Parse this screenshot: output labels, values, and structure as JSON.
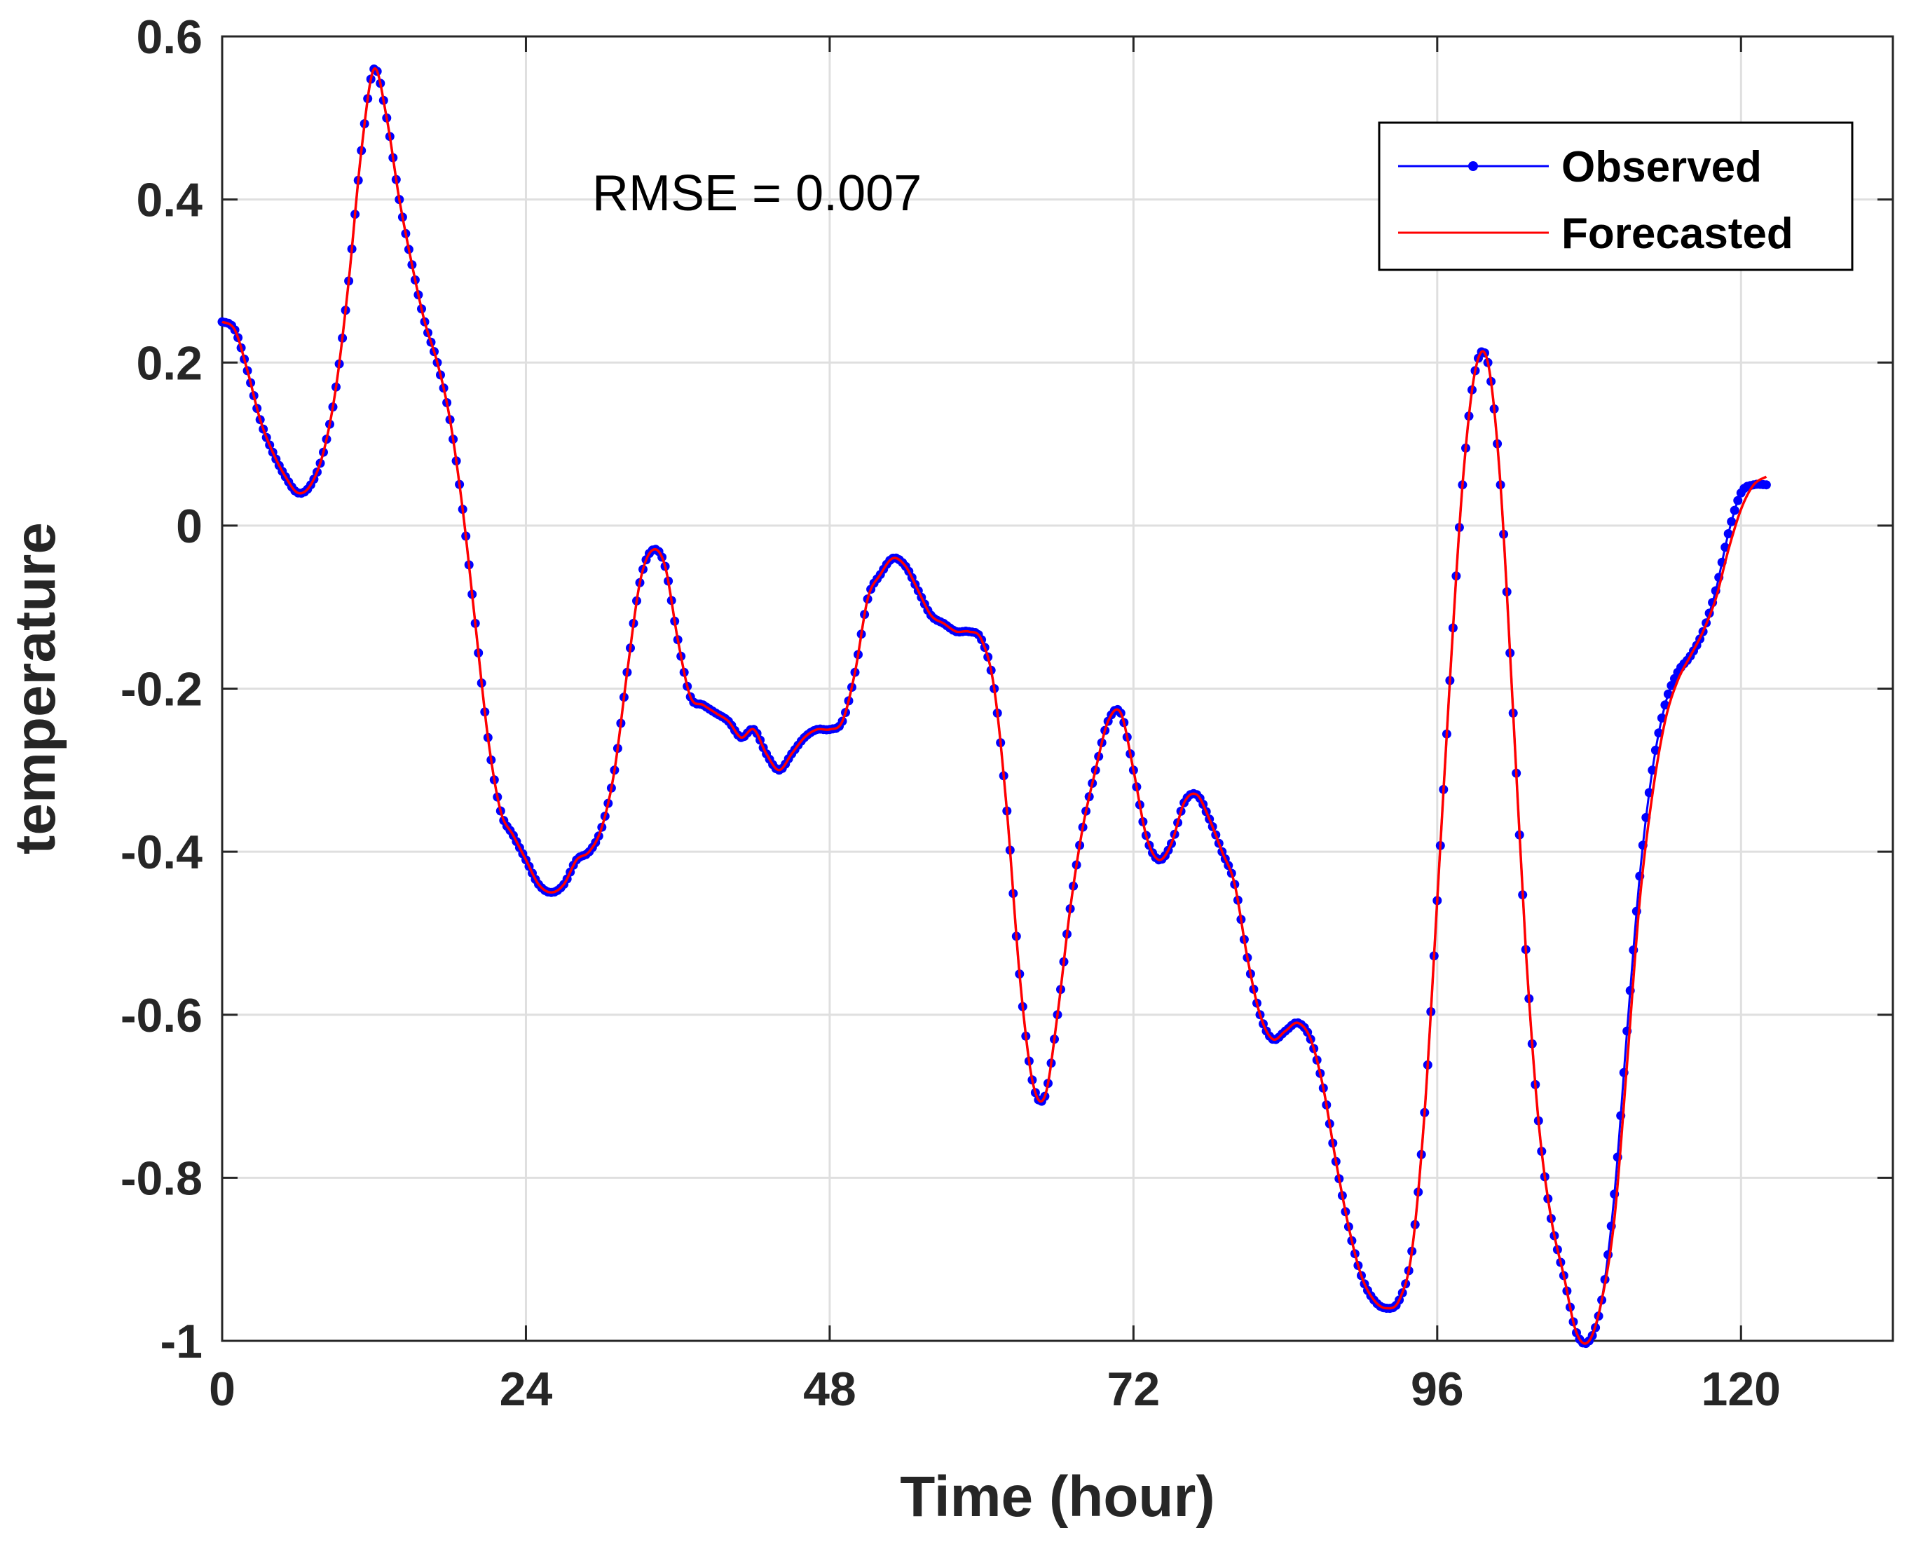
{
  "chart_data": {
    "type": "line",
    "xlabel": "Time (hour)",
    "ylabel": "temperature",
    "xlim": [
      0,
      132
    ],
    "ylim": [
      -1,
      0.6
    ],
    "xticks": [
      0,
      24,
      48,
      72,
      96,
      120
    ],
    "xtick_labels": [
      "0",
      "24",
      "48",
      "72",
      "96",
      "120"
    ],
    "yticks": [
      0.6,
      0.4,
      0.2,
      0,
      -0.2,
      -0.4,
      -0.6,
      -0.8,
      -1
    ],
    "ytick_labels": [
      "0.6",
      "0.4",
      "0.2",
      "0",
      "-0.2",
      "-0.4",
      "-0.6",
      "-0.8",
      "-1"
    ],
    "grid": true,
    "legend_position": "top-right",
    "annotation": "RMSE = 0.007",
    "series": [
      {
        "name": "Observed",
        "color": "#0000ff",
        "marker": "dot",
        "points": [
          [
            0,
            0.25
          ],
          [
            1,
            0.24
          ],
          [
            2,
            0.19
          ],
          [
            3,
            0.13
          ],
          [
            4,
            0.09
          ],
          [
            5,
            0.06
          ],
          [
            6,
            0.04
          ],
          [
            7,
            0.05
          ],
          [
            8,
            0.09
          ],
          [
            9,
            0.17
          ],
          [
            10,
            0.3
          ],
          [
            11,
            0.46
          ],
          [
            12,
            0.56
          ],
          [
            13,
            0.5
          ],
          [
            14,
            0.4
          ],
          [
            15,
            0.32
          ],
          [
            16,
            0.25
          ],
          [
            17,
            0.2
          ],
          [
            18,
            0.13
          ],
          [
            19,
            0.02
          ],
          [
            20,
            -0.12
          ],
          [
            21,
            -0.26
          ],
          [
            22,
            -0.35
          ],
          [
            23,
            -0.38
          ],
          [
            24,
            -0.41
          ],
          [
            25,
            -0.44
          ],
          [
            26,
            -0.45
          ],
          [
            27,
            -0.44
          ],
          [
            28,
            -0.41
          ],
          [
            29,
            -0.4
          ],
          [
            30,
            -0.37
          ],
          [
            31,
            -0.3
          ],
          [
            32,
            -0.18
          ],
          [
            33,
            -0.07
          ],
          [
            34,
            -0.03
          ],
          [
            35,
            -0.05
          ],
          [
            36,
            -0.14
          ],
          [
            37,
            -0.21
          ],
          [
            38,
            -0.22
          ],
          [
            39,
            -0.23
          ],
          [
            40,
            -0.24
          ],
          [
            41,
            -0.26
          ],
          [
            42,
            -0.25
          ],
          [
            43,
            -0.28
          ],
          [
            44,
            -0.3
          ],
          [
            45,
            -0.28
          ],
          [
            46,
            -0.26
          ],
          [
            47,
            -0.25
          ],
          [
            48,
            -0.25
          ],
          [
            49,
            -0.24
          ],
          [
            50,
            -0.18
          ],
          [
            51,
            -0.09
          ],
          [
            52,
            -0.06
          ],
          [
            53,
            -0.04
          ],
          [
            54,
            -0.05
          ],
          [
            55,
            -0.08
          ],
          [
            56,
            -0.11
          ],
          [
            57,
            -0.12
          ],
          [
            58,
            -0.13
          ],
          [
            59,
            -0.13
          ],
          [
            60,
            -0.14
          ],
          [
            61,
            -0.2
          ],
          [
            62,
            -0.35
          ],
          [
            63,
            -0.55
          ],
          [
            64,
            -0.68
          ],
          [
            65,
            -0.7
          ],
          [
            66,
            -0.6
          ],
          [
            67,
            -0.47
          ],
          [
            68,
            -0.37
          ],
          [
            69,
            -0.3
          ],
          [
            70,
            -0.24
          ],
          [
            71,
            -0.23
          ],
          [
            72,
            -0.3
          ],
          [
            73,
            -0.38
          ],
          [
            74,
            -0.41
          ],
          [
            75,
            -0.39
          ],
          [
            76,
            -0.34
          ],
          [
            77,
            -0.33
          ],
          [
            78,
            -0.36
          ],
          [
            79,
            -0.4
          ],
          [
            80,
            -0.44
          ],
          [
            81,
            -0.53
          ],
          [
            82,
            -0.6
          ],
          [
            83,
            -0.63
          ],
          [
            84,
            -0.62
          ],
          [
            85,
            -0.61
          ],
          [
            86,
            -0.63
          ],
          [
            87,
            -0.69
          ],
          [
            88,
            -0.78
          ],
          [
            89,
            -0.86
          ],
          [
            90,
            -0.92
          ],
          [
            91,
            -0.95
          ],
          [
            92,
            -0.96
          ],
          [
            93,
            -0.95
          ],
          [
            94,
            -0.89
          ],
          [
            95,
            -0.72
          ],
          [
            96,
            -0.46
          ],
          [
            97,
            -0.19
          ],
          [
            98,
            0.05
          ],
          [
            99,
            0.19
          ],
          [
            100,
            0.2
          ],
          [
            101,
            0.05
          ],
          [
            102,
            -0.23
          ],
          [
            103,
            -0.52
          ],
          [
            104,
            -0.73
          ],
          [
            105,
            -0.85
          ],
          [
            106,
            -0.92
          ],
          [
            107,
            -0.99
          ],
          [
            108,
            -1.0
          ],
          [
            109,
            -0.95
          ],
          [
            110,
            -0.82
          ],
          [
            111,
            -0.62
          ],
          [
            112,
            -0.43
          ],
          [
            113,
            -0.3
          ],
          [
            114,
            -0.22
          ],
          [
            115,
            -0.18
          ],
          [
            116,
            -0.16
          ],
          [
            117,
            -0.13
          ],
          [
            118,
            -0.08
          ],
          [
            119,
            -0.01
          ],
          [
            120,
            0.04
          ],
          [
            121,
            0.05
          ],
          [
            122,
            0.05
          ]
        ]
      },
      {
        "name": "Forecasted",
        "color": "#ff0000",
        "marker": "none",
        "points": [
          [
            0,
            0.25
          ],
          [
            1,
            0.24
          ],
          [
            2,
            0.19
          ],
          [
            3,
            0.13
          ],
          [
            4,
            0.09
          ],
          [
            5,
            0.06
          ],
          [
            6,
            0.04
          ],
          [
            7,
            0.05
          ],
          [
            8,
            0.09
          ],
          [
            9,
            0.17
          ],
          [
            10,
            0.3
          ],
          [
            11,
            0.46
          ],
          [
            12,
            0.56
          ],
          [
            13,
            0.5
          ],
          [
            14,
            0.4
          ],
          [
            15,
            0.32
          ],
          [
            16,
            0.25
          ],
          [
            17,
            0.2
          ],
          [
            18,
            0.13
          ],
          [
            19,
            0.02
          ],
          [
            20,
            -0.12
          ],
          [
            21,
            -0.26
          ],
          [
            22,
            -0.35
          ],
          [
            23,
            -0.38
          ],
          [
            24,
            -0.41
          ],
          [
            25,
            -0.44
          ],
          [
            26,
            -0.45
          ],
          [
            27,
            -0.44
          ],
          [
            28,
            -0.41
          ],
          [
            29,
            -0.4
          ],
          [
            30,
            -0.37
          ],
          [
            31,
            -0.3
          ],
          [
            32,
            -0.18
          ],
          [
            33,
            -0.07
          ],
          [
            34,
            -0.03
          ],
          [
            35,
            -0.05
          ],
          [
            36,
            -0.14
          ],
          [
            37,
            -0.21
          ],
          [
            38,
            -0.22
          ],
          [
            39,
            -0.23
          ],
          [
            40,
            -0.24
          ],
          [
            41,
            -0.26
          ],
          [
            42,
            -0.25
          ],
          [
            43,
            -0.28
          ],
          [
            44,
            -0.3
          ],
          [
            45,
            -0.28
          ],
          [
            46,
            -0.26
          ],
          [
            47,
            -0.25
          ],
          [
            48,
            -0.25
          ],
          [
            49,
            -0.24
          ],
          [
            50,
            -0.18
          ],
          [
            51,
            -0.09
          ],
          [
            52,
            -0.06
          ],
          [
            53,
            -0.04
          ],
          [
            54,
            -0.05
          ],
          [
            55,
            -0.08
          ],
          [
            56,
            -0.11
          ],
          [
            57,
            -0.12
          ],
          [
            58,
            -0.13
          ],
          [
            59,
            -0.13
          ],
          [
            60,
            -0.14
          ],
          [
            61,
            -0.2
          ],
          [
            62,
            -0.35
          ],
          [
            63,
            -0.55
          ],
          [
            64,
            -0.68
          ],
          [
            65,
            -0.7
          ],
          [
            66,
            -0.6
          ],
          [
            67,
            -0.47
          ],
          [
            68,
            -0.37
          ],
          [
            69,
            -0.3
          ],
          [
            70,
            -0.24
          ],
          [
            71,
            -0.23
          ],
          [
            72,
            -0.3
          ],
          [
            73,
            -0.38
          ],
          [
            74,
            -0.41
          ],
          [
            75,
            -0.39
          ],
          [
            76,
            -0.34
          ],
          [
            77,
            -0.33
          ],
          [
            78,
            -0.36
          ],
          [
            79,
            -0.4
          ],
          [
            80,
            -0.44
          ],
          [
            81,
            -0.53
          ],
          [
            82,
            -0.6
          ],
          [
            83,
            -0.63
          ],
          [
            84,
            -0.62
          ],
          [
            85,
            -0.61
          ],
          [
            86,
            -0.63
          ],
          [
            87,
            -0.69
          ],
          [
            88,
            -0.78
          ],
          [
            89,
            -0.86
          ],
          [
            90,
            -0.92
          ],
          [
            91,
            -0.95
          ],
          [
            92,
            -0.96
          ],
          [
            93,
            -0.95
          ],
          [
            94,
            -0.89
          ],
          [
            95,
            -0.72
          ],
          [
            96,
            -0.46
          ],
          [
            97,
            -0.19
          ],
          [
            98,
            0.05
          ],
          [
            99,
            0.19
          ],
          [
            100,
            0.2
          ],
          [
            101,
            0.05
          ],
          [
            102,
            -0.23
          ],
          [
            103,
            -0.52
          ],
          [
            104,
            -0.73
          ],
          [
            105,
            -0.85
          ],
          [
            106,
            -0.92
          ],
          [
            107,
            -0.99
          ],
          [
            108,
            -1.0
          ],
          [
            109,
            -0.95
          ],
          [
            110,
            -0.85
          ],
          [
            111,
            -0.66
          ],
          [
            112,
            -0.46
          ],
          [
            113,
            -0.33
          ],
          [
            114,
            -0.24
          ],
          [
            115,
            -0.19
          ],
          [
            116,
            -0.16
          ],
          [
            117,
            -0.13
          ],
          [
            118,
            -0.09
          ],
          [
            119,
            -0.03
          ],
          [
            120,
            0.02
          ],
          [
            121,
            0.05
          ],
          [
            122,
            0.06
          ]
        ]
      }
    ]
  }
}
